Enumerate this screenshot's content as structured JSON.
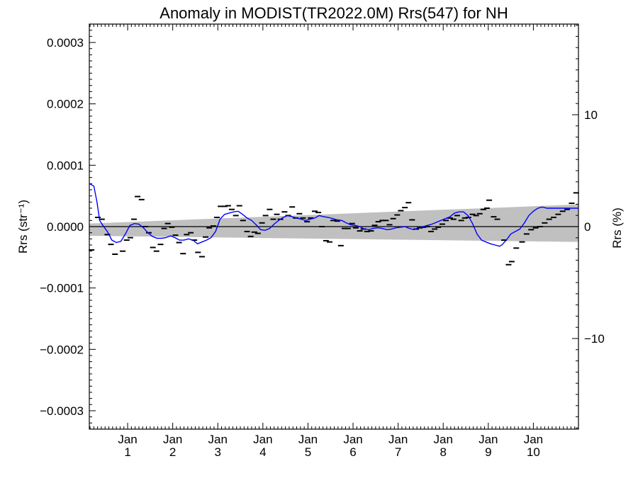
{
  "chart_data": {
    "type": "line",
    "title": "Anomaly in MODIST(TR2022.0M) Rrs(547) for NH",
    "ylabel_left": "Rrs (str⁻¹)",
    "ylabel_right": "Rrs (%)",
    "xlabel": "",
    "ylim_left": [
      -0.00033,
      0.00033
    ],
    "ylim_right": [
      -18.1,
      18.1
    ],
    "xlim": [
      0.15,
      11.0
    ],
    "left_ticks": [
      {
        "value": 0.0003,
        "label": "0.0003"
      },
      {
        "value": 0.0002,
        "label": "0.0002"
      },
      {
        "value": 0.0001,
        "label": "0.0001"
      },
      {
        "value": 0.0,
        "label": "0.0000"
      },
      {
        "value": -0.0001,
        "label": "−0.0001"
      },
      {
        "value": -0.0002,
        "label": "−0.0002"
      },
      {
        "value": -0.0003,
        "label": "−0.0003"
      }
    ],
    "right_ticks": [
      {
        "value": 10,
        "label": "10"
      },
      {
        "value": 0,
        "label": "0"
      },
      {
        "value": -10,
        "label": "−10"
      }
    ],
    "x_ticks": [
      {
        "value": 1,
        "month": "Jan",
        "year": "1"
      },
      {
        "value": 2,
        "month": "Jan",
        "year": "2"
      },
      {
        "value": 3,
        "month": "Jan",
        "year": "3"
      },
      {
        "value": 4,
        "month": "Jan",
        "year": "4"
      },
      {
        "value": 5,
        "month": "Jan",
        "year": "5"
      },
      {
        "value": 6,
        "month": "Jan",
        "year": "6"
      },
      {
        "value": 7,
        "month": "Jan",
        "year": "7"
      },
      {
        "value": 8,
        "month": "Jan",
        "year": "8"
      },
      {
        "value": 9,
        "month": "Jan",
        "year": "9"
      },
      {
        "value": 10,
        "month": "Jan",
        "year": "10"
      }
    ],
    "zero_line": 0,
    "uncertainty_band": {
      "color": "#c0c0c0",
      "lower": [
        [
          0.15,
          -1.5e-05
        ],
        [
          11.0,
          -2.5e-05
        ]
      ],
      "upper": [
        [
          0.15,
          5e-06
        ],
        [
          11.0,
          3.6e-05
        ]
      ]
    },
    "series": [
      {
        "style": "dash-markers",
        "color": "#000000",
        "points": [
          [
            0.2,
            -3.8e-05
          ],
          [
            0.34,
            1.5e-05
          ],
          [
            0.43,
            1.2e-05
          ],
          [
            0.55,
            -1.3e-05
          ],
          [
            0.63,
            -2.9e-05
          ],
          [
            0.72,
            -4.5e-05
          ],
          [
            0.89,
            -4e-05
          ],
          [
            0.98,
            -2.2e-05
          ],
          [
            1.06,
            -1.8e-05
          ],
          [
            1.14,
            1.2e-05
          ],
          [
            1.22,
            4.9e-05
          ],
          [
            1.31,
            4.4e-05
          ],
          [
            1.39,
            0.0
          ],
          [
            1.47,
            -1e-05
          ],
          [
            1.56,
            -3.4e-05
          ],
          [
            1.64,
            -4e-05
          ],
          [
            1.73,
            -2.9e-05
          ],
          [
            1.81,
            -3e-06
          ],
          [
            1.89,
            5e-06
          ],
          [
            1.98,
            -1e-06
          ],
          [
            2.06,
            -1.4e-05
          ],
          [
            2.14,
            -2.6e-05
          ],
          [
            2.23,
            -4.4e-05
          ],
          [
            2.31,
            -1.3e-05
          ],
          [
            2.4,
            -1e-05
          ],
          [
            2.48,
            -2.2e-05
          ],
          [
            2.56,
            -4.2e-05
          ],
          [
            2.65,
            -4.9e-05
          ],
          [
            2.73,
            -1.7e-05
          ],
          [
            2.81,
            -2e-06
          ],
          [
            2.9,
            1e-06
          ],
          [
            2.98,
            1.5e-05
          ],
          [
            3.06,
            3.3e-05
          ],
          [
            3.15,
            3.3e-05
          ],
          [
            3.23,
            3.4e-05
          ],
          [
            3.31,
            2.8e-05
          ],
          [
            3.4,
            1.8e-05
          ],
          [
            3.48,
            3.4e-05
          ],
          [
            3.56,
            1e-05
          ],
          [
            3.65,
            -8e-06
          ],
          [
            3.73,
            -1.6e-05
          ],
          [
            3.81,
            -9e-06
          ],
          [
            3.89,
            -1.1e-05
          ],
          [
            3.98,
            6e-06
          ],
          [
            4.06,
            1.8e-05
          ],
          [
            4.15,
            2.8e-05
          ],
          [
            4.23,
            1.2e-05
          ],
          [
            4.31,
            2e-05
          ],
          [
            4.39,
            1.2e-05
          ],
          [
            4.48,
            2.4e-05
          ],
          [
            4.56,
            1.8e-05
          ],
          [
            4.65,
            3.2e-05
          ],
          [
            4.73,
            1.4e-05
          ],
          [
            4.81,
            2.1e-05
          ],
          [
            4.89,
            1.4e-05
          ],
          [
            4.98,
            8e-06
          ],
          [
            5.06,
            1.4e-05
          ],
          [
            5.15,
            2.5e-05
          ],
          [
            5.23,
            2.3e-05
          ],
          [
            5.31,
            0.0
          ],
          [
            5.4,
            -2.3e-05
          ],
          [
            5.48,
            -2.5e-05
          ],
          [
            5.56,
            1e-05
          ],
          [
            5.65,
            9e-06
          ],
          [
            5.73,
            -3.1e-05
          ],
          [
            5.81,
            -3e-06
          ],
          [
            5.89,
            -3e-06
          ],
          [
            5.98,
            5e-06
          ],
          [
            6.06,
            -2e-06
          ],
          [
            6.15,
            -7e-06
          ],
          [
            6.23,
            -4e-06
          ],
          [
            6.31,
            -8e-06
          ],
          [
            6.4,
            -7e-06
          ],
          [
            6.48,
            2e-06
          ],
          [
            6.56,
            8e-06
          ],
          [
            6.65,
            1e-05
          ],
          [
            6.73,
            1e-05
          ],
          [
            6.81,
            3e-06
          ],
          [
            6.89,
            1.3e-05
          ],
          [
            6.98,
            1.9e-05
          ],
          [
            7.06,
            2.6e-05
          ],
          [
            7.15,
            3.1e-05
          ],
          [
            7.23,
            3.9e-05
          ],
          [
            7.31,
            1.1e-05
          ],
          [
            7.4,
            -4e-06
          ],
          [
            7.48,
            -2e-06
          ],
          [
            7.56,
            -1e-06
          ],
          [
            7.65,
            0.0
          ],
          [
            7.73,
            -8e-06
          ],
          [
            7.81,
            -4e-06
          ],
          [
            7.89,
            -1e-06
          ],
          [
            7.98,
            4e-06
          ],
          [
            8.06,
            1e-05
          ],
          [
            8.15,
            1.4e-05
          ],
          [
            8.23,
            1.2e-05
          ],
          [
            8.31,
            1.8e-05
          ],
          [
            8.4,
            1e-05
          ],
          [
            8.48,
            1.4e-05
          ],
          [
            8.56,
            1.5e-05
          ],
          [
            8.65,
            2e-05
          ],
          [
            8.73,
            1.8e-05
          ],
          [
            8.81,
            2.1e-05
          ],
          [
            8.89,
            2.8e-05
          ],
          [
            8.97,
            3e-05
          ],
          [
            9.02,
            4.3e-05
          ],
          [
            9.12,
            1.6e-05
          ],
          [
            9.2,
            1.2e-05
          ],
          [
            9.35,
            -2.2e-05
          ],
          [
            9.45,
            -6.2e-05
          ],
          [
            9.52,
            -5.7e-05
          ],
          [
            9.62,
            -3.5e-05
          ],
          [
            9.75,
            -2.5e-05
          ],
          [
            9.85,
            -1.2e-05
          ],
          [
            9.95,
            -5e-06
          ],
          [
            10.05,
            -2e-06
          ],
          [
            10.15,
            0.0
          ],
          [
            10.25,
            6e-06
          ],
          [
            10.35,
            1.2e-05
          ],
          [
            10.45,
            1.5e-05
          ],
          [
            10.55,
            2e-05
          ],
          [
            10.65,
            2.5e-05
          ],
          [
            10.75,
            2.8e-05
          ],
          [
            10.85,
            3.8e-05
          ],
          [
            10.95,
            5.5e-05
          ]
        ]
      },
      {
        "style": "smoothed-line",
        "color": "#0000ff",
        "points": [
          [
            0.15,
            7e-05
          ],
          [
            0.25,
            6.6e-05
          ],
          [
            0.32,
            4e-05
          ],
          [
            0.38,
            1e-05
          ],
          [
            0.45,
            2e-06
          ],
          [
            0.55,
            -8e-06
          ],
          [
            0.65,
            -2.2e-05
          ],
          [
            0.75,
            -2.6e-05
          ],
          [
            0.85,
            -2.4e-05
          ],
          [
            0.95,
            -1.2e-05
          ],
          [
            1.05,
            2e-06
          ],
          [
            1.15,
            5e-06
          ],
          [
            1.25,
            4e-06
          ],
          [
            1.35,
            -2e-06
          ],
          [
            1.45,
            -1e-05
          ],
          [
            1.55,
            -1.6e-05
          ],
          [
            1.65,
            -1.9e-05
          ],
          [
            1.75,
            -1.9e-05
          ],
          [
            1.85,
            -1.8e-05
          ],
          [
            1.95,
            -1.5e-05
          ],
          [
            2.05,
            -1.8e-05
          ],
          [
            2.15,
            -2.2e-05
          ],
          [
            2.25,
            -2.2e-05
          ],
          [
            2.35,
            -2e-05
          ],
          [
            2.45,
            -2.2e-05
          ],
          [
            2.55,
            -2.8e-05
          ],
          [
            2.65,
            -2.5e-05
          ],
          [
            2.75,
            -2.2e-05
          ],
          [
            2.85,
            -1.8e-05
          ],
          [
            2.95,
            -8e-06
          ],
          [
            3.05,
            1.2e-05
          ],
          [
            3.15,
            2e-05
          ],
          [
            3.25,
            2.2e-05
          ],
          [
            3.35,
            2.4e-05
          ],
          [
            3.45,
            2.5e-05
          ],
          [
            3.55,
            2e-05
          ],
          [
            3.65,
            1.4e-05
          ],
          [
            3.75,
            1e-05
          ],
          [
            3.85,
            3e-06
          ],
          [
            3.95,
            -5e-06
          ],
          [
            4.05,
            -6e-06
          ],
          [
            4.15,
            -3e-06
          ],
          [
            4.25,
            4e-06
          ],
          [
            4.35,
            1e-05
          ],
          [
            4.45,
            1.5e-05
          ],
          [
            4.55,
            1.8e-05
          ],
          [
            4.65,
            1.6e-05
          ],
          [
            4.75,
            1.4e-05
          ],
          [
            4.85,
            1.2e-05
          ],
          [
            4.95,
            1e-05
          ],
          [
            5.05,
            1.2e-05
          ],
          [
            5.15,
            1.4e-05
          ],
          [
            5.25,
            1.8e-05
          ],
          [
            5.35,
            1.6e-05
          ],
          [
            5.45,
            1.5e-05
          ],
          [
            5.55,
            1.3e-05
          ],
          [
            5.65,
            1.1e-05
          ],
          [
            5.75,
            1e-05
          ],
          [
            5.85,
            6e-06
          ],
          [
            5.95,
            3e-06
          ],
          [
            6.05,
            2e-06
          ],
          [
            6.15,
            0.0
          ],
          [
            6.25,
            -4e-06
          ],
          [
            6.35,
            -5e-06
          ],
          [
            6.45,
            -3e-06
          ],
          [
            6.55,
            -2e-06
          ],
          [
            6.65,
            -3e-06
          ],
          [
            6.75,
            -5e-06
          ],
          [
            6.85,
            -4e-06
          ],
          [
            6.95,
            -2e-06
          ],
          [
            7.05,
            -1e-06
          ],
          [
            7.15,
            0.0
          ],
          [
            7.25,
            -3e-06
          ],
          [
            7.35,
            -5e-06
          ],
          [
            7.45,
            -2e-06
          ],
          [
            7.55,
            0.0
          ],
          [
            7.65,
            2e-06
          ],
          [
            7.75,
            4e-06
          ],
          [
            7.85,
            7e-06
          ],
          [
            7.95,
            1e-05
          ],
          [
            8.05,
            1.3e-05
          ],
          [
            8.15,
            1.6e-05
          ],
          [
            8.25,
            2.2e-05
          ],
          [
            8.35,
            2.4e-05
          ],
          [
            8.45,
            2.4e-05
          ],
          [
            8.55,
            1.8e-05
          ],
          [
            8.65,
            5e-06
          ],
          [
            8.75,
            -1.2e-05
          ],
          [
            8.85,
            -2.2e-05
          ],
          [
            8.95,
            -2.5e-05
          ],
          [
            9.05,
            -2.8e-05
          ],
          [
            9.15,
            -3e-05
          ],
          [
            9.25,
            -3.2e-05
          ],
          [
            9.3,
            -3e-05
          ],
          [
            9.4,
            -2.2e-05
          ],
          [
            9.5,
            -1.2e-05
          ],
          [
            9.6,
            -8e-06
          ],
          [
            9.7,
            -4e-06
          ],
          [
            9.8,
            6e-06
          ],
          [
            9.9,
            1.8e-05
          ],
          [
            10.0,
            2.5e-05
          ],
          [
            10.1,
            3e-05
          ],
          [
            10.2,
            3.2e-05
          ],
          [
            10.3,
            3e-05
          ],
          [
            10.4,
            3e-05
          ],
          [
            10.5,
            3e-05
          ],
          [
            10.6,
            3e-05
          ],
          [
            10.7,
            3e-05
          ],
          [
            10.8,
            3e-05
          ],
          [
            10.9,
            3e-05
          ],
          [
            11.0,
            3e-05
          ]
        ]
      }
    ]
  }
}
